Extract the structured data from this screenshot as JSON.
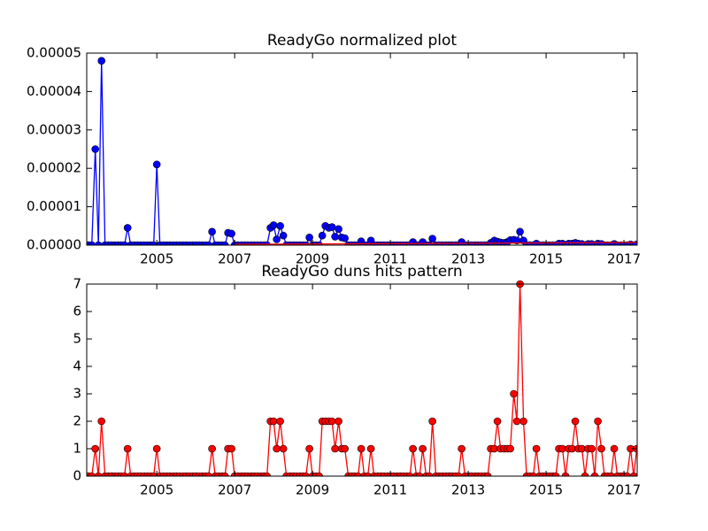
{
  "chart_data": [
    {
      "type": "line",
      "title": "ReadyGo normalized plot",
      "x": [
        2003.25,
        2003.33,
        2003.42,
        2003.5,
        2003.58,
        2003.67,
        2003.75,
        2003.83,
        2003.92,
        2004,
        2004.08,
        2004.17,
        2004.25,
        2004.33,
        2004.42,
        2004.5,
        2004.58,
        2004.67,
        2004.75,
        2004.83,
        2004.92,
        2005,
        2005.08,
        2005.17,
        2005.25,
        2005.33,
        2005.42,
        2005.5,
        2005.58,
        2005.67,
        2005.75,
        2005.83,
        2005.92,
        2006,
        2006.08,
        2006.17,
        2006.25,
        2006.33,
        2006.42,
        2006.5,
        2006.58,
        2006.67,
        2006.75,
        2006.83,
        2006.92,
        2007,
        2007.08,
        2007.17,
        2007.25,
        2007.33,
        2007.42,
        2007.5,
        2007.58,
        2007.67,
        2007.75,
        2007.83,
        2007.92,
        2008,
        2008.08,
        2008.17,
        2008.25,
        2008.33,
        2008.42,
        2008.5,
        2008.58,
        2008.67,
        2008.75,
        2008.83,
        2008.92,
        2009,
        2009.08,
        2009.17,
        2009.25,
        2009.33,
        2009.42,
        2009.5,
        2009.58,
        2009.67,
        2009.75,
        2009.83,
        2009.92,
        2010,
        2010.08,
        2010.17,
        2010.25,
        2010.33,
        2010.42,
        2010.5,
        2010.58,
        2010.67,
        2010.75,
        2010.83,
        2010.92,
        2011,
        2011.08,
        2011.17,
        2011.25,
        2011.33,
        2011.42,
        2011.5,
        2011.58,
        2011.67,
        2011.75,
        2011.83,
        2011.92,
        2012,
        2012.08,
        2012.17,
        2012.25,
        2012.33,
        2012.42,
        2012.5,
        2012.58,
        2012.67,
        2012.75,
        2012.83,
        2012.92,
        2013,
        2013.08,
        2013.17,
        2013.25,
        2013.33,
        2013.42,
        2013.5,
        2013.58,
        2013.67,
        2013.75,
        2013.83,
        2013.92,
        2014,
        2014.08,
        2014.17,
        2014.25,
        2014.33,
        2014.42,
        2014.5,
        2014.58,
        2014.67,
        2014.75,
        2014.83,
        2014.92,
        2015,
        2015.08,
        2015.17,
        2015.25,
        2015.33,
        2015.42,
        2015.5,
        2015.58,
        2015.67,
        2015.75,
        2015.83,
        2015.92,
        2016,
        2016.08,
        2016.17,
        2016.25,
        2016.33,
        2016.42,
        2016.5,
        2016.58,
        2016.67,
        2016.75,
        2016.83,
        2016.92,
        2017,
        2017.08,
        2017.17,
        2017.25,
        2017.33
      ],
      "series": [
        {
          "color": "#0000ff",
          "marker_edge": "#000000",
          "values": [
            0,
            0,
            2.5e-05,
            0,
            4.8e-05,
            0,
            0,
            0,
            0,
            0,
            0,
            0,
            4.5e-06,
            0,
            0,
            0,
            0,
            0,
            0,
            0,
            0,
            2.1e-05,
            0,
            0,
            0,
            0,
            0,
            0,
            0,
            0,
            0,
            0,
            0,
            0,
            0,
            0,
            0,
            0,
            3.5e-06,
            0,
            0,
            0,
            0,
            3.2e-06,
            3e-06,
            0,
            0,
            0,
            0,
            0,
            0,
            0,
            0,
            0,
            0,
            0,
            4.5e-06,
            5.2e-06,
            1.5e-06,
            5e-06,
            2.5e-06,
            0,
            0,
            0,
            0,
            0,
            0,
            0,
            2e-06,
            0,
            0,
            0,
            2.5e-06,
            5e-06,
            4.5e-06,
            4.7e-06,
            2.2e-06,
            4.2e-06,
            2e-06,
            1.8e-06,
            0,
            0,
            0,
            0,
            1e-06,
            0,
            0,
            1.2e-06,
            0,
            0,
            0,
            0,
            0,
            0,
            0,
            0,
            0,
            0,
            0,
            0,
            8e-07,
            0,
            0,
            8e-07,
            0,
            0,
            1.7e-06,
            0,
            0,
            0,
            0,
            0,
            0,
            0,
            0,
            8e-07,
            0,
            0,
            0,
            0,
            0,
            0,
            0,
            0,
            6e-07,
            1.2e-06,
            9e-07,
            7e-07,
            6e-07,
            8e-07,
            1.3e-06,
            1.4e-06,
            1.2e-06,
            3.5e-06,
            1.2e-06,
            0,
            0,
            0,
            4e-07,
            0,
            0,
            0,
            0,
            0,
            0,
            4e-07,
            4e-07,
            0,
            4e-07,
            4e-07,
            6e-07,
            4e-07,
            3e-07,
            0,
            3e-07,
            3e-07,
            0,
            4e-07,
            3e-07,
            0,
            0,
            0,
            3e-07,
            0,
            0,
            0,
            0,
            2e-07,
            0,
            2e-07
          ]
        },
        {
          "color": "#ff0000",
          "marker": false,
          "x": [
            2007,
            2017.33
          ],
          "values": [
            2e-07,
            7e-07
          ]
        }
      ],
      "xlim": [
        2003.2,
        2017.34
      ],
      "xticks": [
        2005,
        2007,
        2009,
        2011,
        2013,
        2015,
        2017
      ],
      "ylim": [
        0,
        5e-05
      ],
      "yticks": [
        {
          "value": 0,
          "label": "0.00000"
        },
        {
          "value": 1e-05,
          "label": "0.00001"
        },
        {
          "value": 2e-05,
          "label": "0.00002"
        },
        {
          "value": 3e-05,
          "label": "0.00003"
        },
        {
          "value": 4e-05,
          "label": "0.00004"
        },
        {
          "value": 5e-05,
          "label": "0.00005"
        }
      ]
    },
    {
      "type": "line",
      "title": "ReadyGo duns hits pattern",
      "x": [
        2003.25,
        2003.33,
        2003.42,
        2003.5,
        2003.58,
        2003.67,
        2003.75,
        2003.83,
        2003.92,
        2004,
        2004.08,
        2004.17,
        2004.25,
        2004.33,
        2004.42,
        2004.5,
        2004.58,
        2004.67,
        2004.75,
        2004.83,
        2004.92,
        2005,
        2005.08,
        2005.17,
        2005.25,
        2005.33,
        2005.42,
        2005.5,
        2005.58,
        2005.67,
        2005.75,
        2005.83,
        2005.92,
        2006,
        2006.08,
        2006.17,
        2006.25,
        2006.33,
        2006.42,
        2006.5,
        2006.58,
        2006.67,
        2006.75,
        2006.83,
        2006.92,
        2007,
        2007.08,
        2007.17,
        2007.25,
        2007.33,
        2007.42,
        2007.5,
        2007.58,
        2007.67,
        2007.75,
        2007.83,
        2007.92,
        2008,
        2008.08,
        2008.17,
        2008.25,
        2008.33,
        2008.42,
        2008.5,
        2008.58,
        2008.67,
        2008.75,
        2008.83,
        2008.92,
        2009,
        2009.08,
        2009.17,
        2009.25,
        2009.33,
        2009.42,
        2009.5,
        2009.58,
        2009.67,
        2009.75,
        2009.83,
        2009.92,
        2010,
        2010.08,
        2010.17,
        2010.25,
        2010.33,
        2010.42,
        2010.5,
        2010.58,
        2010.67,
        2010.75,
        2010.83,
        2010.92,
        2011,
        2011.08,
        2011.17,
        2011.25,
        2011.33,
        2011.42,
        2011.5,
        2011.58,
        2011.67,
        2011.75,
        2011.83,
        2011.92,
        2012,
        2012.08,
        2012.17,
        2012.25,
        2012.33,
        2012.42,
        2012.5,
        2012.58,
        2012.67,
        2012.75,
        2012.83,
        2012.92,
        2013,
        2013.08,
        2013.17,
        2013.25,
        2013.33,
        2013.42,
        2013.5,
        2013.58,
        2013.67,
        2013.75,
        2013.83,
        2013.92,
        2014,
        2014.08,
        2014.17,
        2014.25,
        2014.33,
        2014.42,
        2014.5,
        2014.58,
        2014.67,
        2014.75,
        2014.83,
        2014.92,
        2015,
        2015.08,
        2015.17,
        2015.25,
        2015.33,
        2015.42,
        2015.5,
        2015.58,
        2015.67,
        2015.75,
        2015.83,
        2015.92,
        2016,
        2016.08,
        2016.17,
        2016.25,
        2016.33,
        2016.42,
        2016.5,
        2016.58,
        2016.67,
        2016.75,
        2016.83,
        2016.92,
        2017,
        2017.08,
        2017.17,
        2017.25,
        2017.33
      ],
      "series": [
        {
          "color": "#ff0000",
          "marker_edge": "#000000",
          "values": [
            0,
            0,
            1,
            0,
            2,
            0,
            0,
            0,
            0,
            0,
            0,
            0,
            1,
            0,
            0,
            0,
            0,
            0,
            0,
            0,
            0,
            1,
            0,
            0,
            0,
            0,
            0,
            0,
            0,
            0,
            0,
            0,
            0,
            0,
            0,
            0,
            0,
            0,
            1,
            0,
            0,
            0,
            0,
            1,
            1,
            0,
            0,
            0,
            0,
            0,
            0,
            0,
            0,
            0,
            0,
            0,
            2,
            2,
            1,
            2,
            1,
            0,
            0,
            0,
            0,
            0,
            0,
            0,
            1,
            0,
            0,
            0,
            2,
            2,
            2,
            2,
            1,
            2,
            1,
            1,
            0,
            0,
            0,
            0,
            1,
            0,
            0,
            1,
            0,
            0,
            0,
            0,
            0,
            0,
            0,
            0,
            0,
            0,
            0,
            0,
            1,
            0,
            0,
            1,
            0,
            0,
            2,
            0,
            0,
            0,
            0,
            0,
            0,
            0,
            0,
            1,
            0,
            0,
            0,
            0,
            0,
            0,
            0,
            0,
            1,
            1,
            2,
            1,
            1,
            1,
            1,
            3,
            2,
            7,
            2,
            0,
            0,
            0,
            1,
            0,
            0,
            0,
            0,
            0,
            0,
            1,
            1,
            0,
            1,
            1,
            2,
            1,
            1,
            0,
            1,
            1,
            0,
            2,
            1,
            0,
            0,
            0,
            1,
            0,
            0,
            0,
            0,
            1,
            0,
            1
          ]
        }
      ],
      "xlim": [
        2003.2,
        2017.34
      ],
      "xticks": [
        2005,
        2007,
        2009,
        2011,
        2013,
        2015,
        2017
      ],
      "ylim": [
        0,
        7
      ],
      "yticks": [
        0,
        1,
        2,
        3,
        4,
        5,
        6,
        7
      ]
    }
  ]
}
